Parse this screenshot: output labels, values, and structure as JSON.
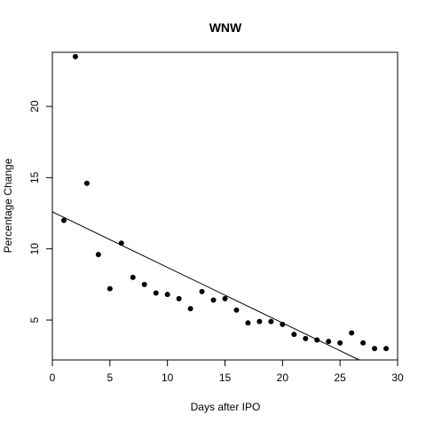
{
  "chart_data": {
    "type": "scatter",
    "title": "WNW",
    "xlabel": "Days after IPO",
    "ylabel": "Percentage Change",
    "xlim": [
      0,
      30
    ],
    "ylim": [
      2.2,
      23.8
    ],
    "x_ticks": [
      0,
      5,
      10,
      15,
      20,
      25,
      30
    ],
    "y_ticks": [
      5,
      10,
      15,
      20
    ],
    "grid": false,
    "legend": "none",
    "colors": {
      "points": "#000000",
      "line": "#000000",
      "axes": "#000000"
    },
    "series": [
      {
        "x": [
          1,
          2,
          3,
          4,
          5,
          6,
          7,
          8,
          9,
          10,
          11,
          12,
          13,
          14,
          15,
          16,
          17,
          18,
          19,
          20,
          21,
          22,
          23,
          24,
          25,
          26,
          27,
          28,
          29
        ],
        "y": [
          12.0,
          23.5,
          14.6,
          9.6,
          7.2,
          10.4,
          8.0,
          7.5,
          6.9,
          6.8,
          6.5,
          5.8,
          7.0,
          6.4,
          6.5,
          5.7,
          4.8,
          4.9,
          4.9,
          4.7,
          4.0,
          3.7,
          3.6,
          3.5,
          3.4,
          4.1,
          3.4,
          3.0,
          3.0
        ]
      }
    ],
    "trend_line": {
      "type": "linear",
      "intercept": 12.6,
      "slope": -0.39
    }
  }
}
